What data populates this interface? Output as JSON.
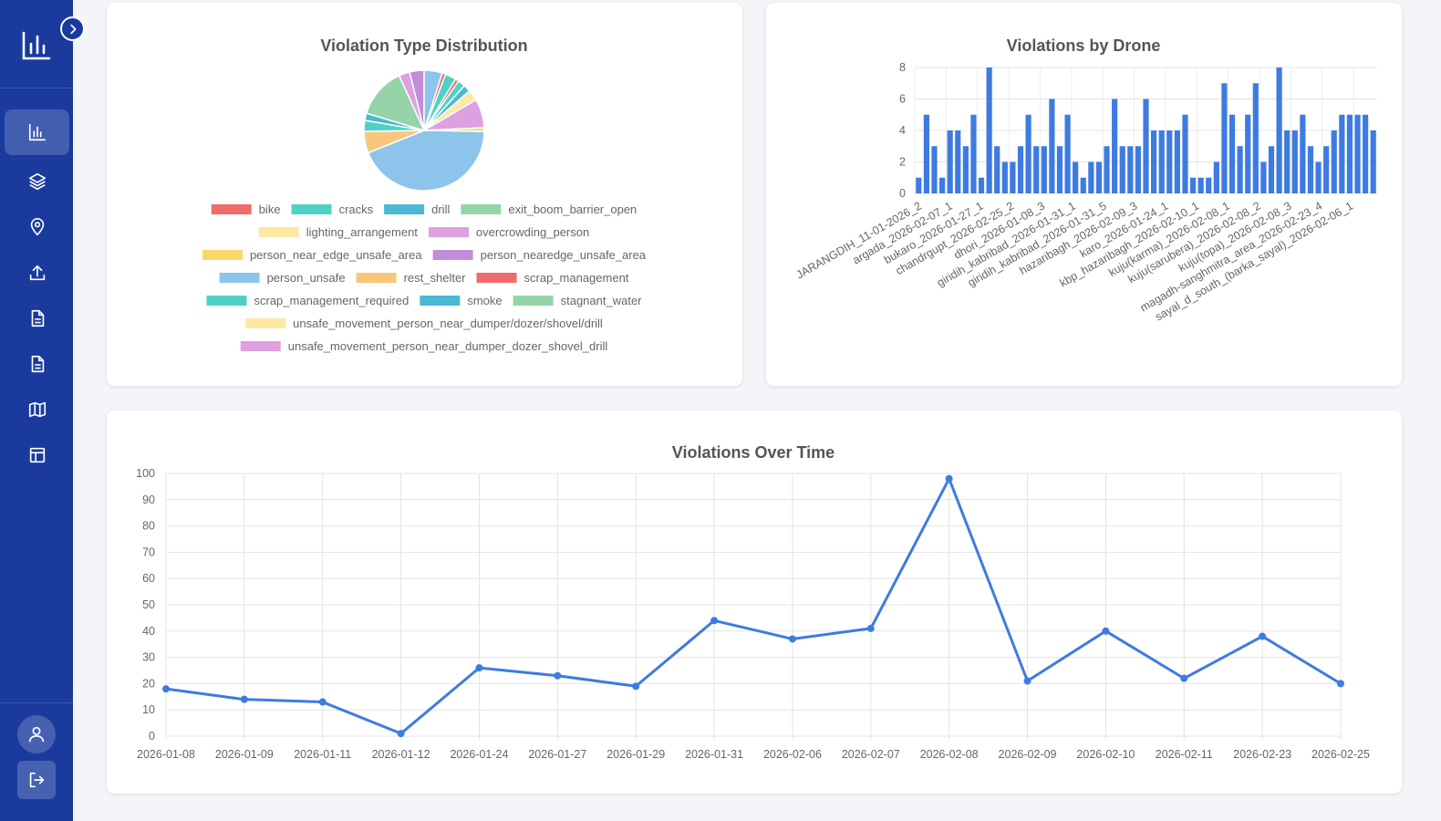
{
  "sidebar": {
    "logo_icon": "bar-chart-icon",
    "toggle_icon": "chevron-right-icon",
    "items": [
      {
        "name": "dashboard",
        "icon": "bar-chart-icon",
        "active": true
      },
      {
        "name": "layers",
        "icon": "layers-icon",
        "active": false
      },
      {
        "name": "locations",
        "icon": "map-pin-icon",
        "active": false
      },
      {
        "name": "upload",
        "icon": "upload-icon",
        "active": false
      },
      {
        "name": "reports",
        "icon": "document-icon",
        "active": false
      },
      {
        "name": "documents",
        "icon": "document-icon",
        "active": false
      },
      {
        "name": "map",
        "icon": "map-icon",
        "active": false
      },
      {
        "name": "table",
        "icon": "table-icon",
        "active": false
      }
    ],
    "bottom": [
      {
        "name": "profile",
        "icon": "user-icon"
      },
      {
        "name": "logout",
        "icon": "logout-icon"
      }
    ],
    "colors": {
      "background": "#1a3a9e",
      "active": "#3b57b0"
    }
  },
  "chart_data": [
    {
      "type": "pie",
      "title": "Violation Type Distribution",
      "legend_position": "bottom",
      "slices": [
        {
          "label": "bike",
          "value": 1,
          "color": "#f06b6b"
        },
        {
          "label": "cracks",
          "value": 2,
          "color": "#4fd1c5"
        },
        {
          "label": "drill",
          "value": 2,
          "color": "#4bb8d4"
        },
        {
          "label": "exit_boom_barrier_open",
          "value": 0,
          "color": "#94d4a8"
        },
        {
          "label": "lighting_arrangement",
          "value": 3,
          "color": "#fde8a4"
        },
        {
          "label": "overcrowding_person",
          "value": 8,
          "color": "#dea0e0"
        },
        {
          "label": "person_near_edge_unsafe_area",
          "value": 1,
          "color": "#f9d86b"
        },
        {
          "label": "person_nearedge_unsafe_area",
          "value": 0,
          "color": "#c08ed8"
        },
        {
          "label": "person_unsafe",
          "value": 45,
          "color": "#8cc4ec"
        },
        {
          "label": "rest_shelter",
          "value": 6,
          "color": "#f9c77c"
        },
        {
          "label": "scrap_management",
          "value": 0,
          "color": "#f06b6b"
        },
        {
          "label": "scrap_management_required",
          "value": 3,
          "color": "#4fd1c5"
        },
        {
          "label": "smoke",
          "value": 2,
          "color": "#4bb8d4"
        },
        {
          "label": "stagnant_water",
          "value": 14,
          "color": "#94d4a8"
        },
        {
          "label": "unsafe_movement_person_near_dumper/dozer/shovel/drill",
          "value": 0,
          "color": "#fde8a4"
        },
        {
          "label": "unsafe_movement_person_near_dumper_dozer_shovel_drill",
          "value": 3,
          "color": "#dea0e0"
        },
        {
          "label": "",
          "value": 4,
          "color": "#c08ed8"
        },
        {
          "label": "",
          "value": 5,
          "color": "#8cc4ec"
        },
        {
          "label": "",
          "value": 1,
          "color": "#f06b6b"
        },
        {
          "label": "",
          "value": 3,
          "color": "#4fd1c5"
        }
      ]
    },
    {
      "type": "bar",
      "title": "Violations by Drone",
      "ylim": [
        0,
        8
      ],
      "yticks": [
        0,
        2,
        4,
        6,
        8
      ],
      "grid": true,
      "color": "#3e7be0",
      "values": [
        1,
        5,
        3,
        1,
        4,
        4,
        3,
        5,
        1,
        8,
        3,
        2,
        2,
        3,
        5,
        3,
        3,
        6,
        3,
        5,
        2,
        1,
        2,
        2,
        3,
        6,
        3,
        3,
        3,
        6,
        4,
        4,
        4,
        4,
        5,
        1,
        1,
        1,
        2,
        7,
        5,
        3,
        5,
        7,
        2,
        3,
        8,
        4,
        4,
        5,
        3,
        2,
        3,
        4,
        5,
        5,
        5,
        5,
        4
      ],
      "tick_labels": [
        "JARANGDIH_11-01-2026_2",
        "argada_2026-02-07_1",
        "bukaro_2026-01-27_1",
        "chandrgupt_2026-02-25_2",
        "dhori_2026-01-08_3",
        "giridih_kabribad_2026-01-31_1",
        "giridih_kabribad_2026-01-31_5",
        "hazaribagh_2026-02-09_3",
        "karo_2026-01-24_1",
        "kbp_hazaribagh_2026-02-10_1",
        "kuju(karma)_2026-02-08_1",
        "kuju(sarubera)_2026-02-08_2",
        "kuju(topa)_2026-02-08_3",
        "magadh-sanghmitra_area_2026-02-23_4",
        "sayal_d_south_(barka_sayal)_2026-02-06_1"
      ]
    },
    {
      "type": "line",
      "title": "Violations Over Time",
      "ylim": [
        0,
        100
      ],
      "yticks": [
        0,
        10,
        20,
        30,
        40,
        50,
        60,
        70,
        80,
        90,
        100
      ],
      "grid": true,
      "color": "#3e7be0",
      "x": [
        "2026-01-08",
        "2026-01-09",
        "2026-01-11",
        "2026-01-12",
        "2026-01-24",
        "2026-01-27",
        "2026-01-29",
        "2026-01-31",
        "2026-02-06",
        "2026-02-07",
        "2026-02-08",
        "2026-02-09",
        "2026-02-10",
        "2026-02-11",
        "2026-02-23",
        "2026-02-25"
      ],
      "values": [
        18,
        14,
        13,
        1,
        26,
        23,
        19,
        44,
        37,
        41,
        98,
        21,
        40,
        22,
        38,
        20
      ]
    }
  ]
}
